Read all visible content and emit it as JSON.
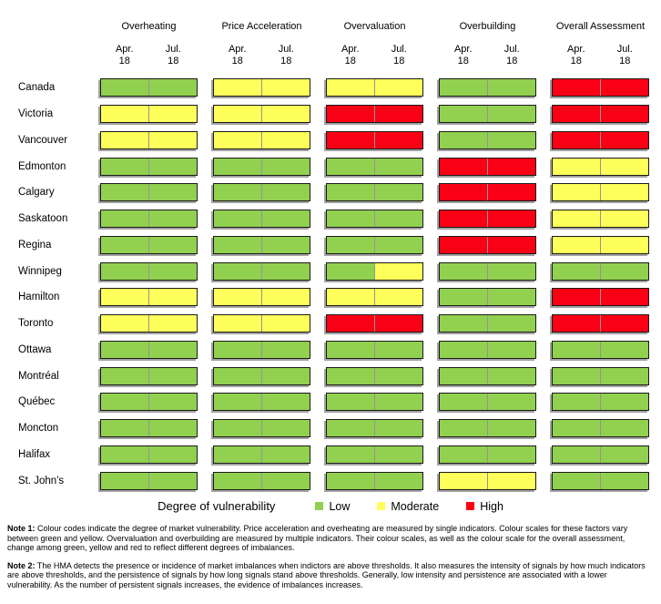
{
  "chart_data": {
    "type": "heatmap",
    "columns": [
      "Overheating",
      "Price Acceleration",
      "Overvaluation",
      "Overbuilding",
      "Overall Assessment"
    ],
    "periods": [
      "Apr. 18",
      "Jul. 18"
    ],
    "colors": {
      "low": "#92D050",
      "moderate": "#FFFF5B",
      "high": "#FA0014"
    },
    "legend": {
      "title": "Degree of vulnerability",
      "items": [
        {
          "label": "Low",
          "level": "low"
        },
        {
          "label": "Moderate",
          "level": "moderate"
        },
        {
          "label": "High",
          "level": "high"
        }
      ]
    },
    "rows": [
      {
        "city": "Canada",
        "values": [
          [
            "low",
            "low"
          ],
          [
            "moderate",
            "moderate"
          ],
          [
            "moderate",
            "moderate"
          ],
          [
            "low",
            "low"
          ],
          [
            "high",
            "high"
          ]
        ]
      },
      {
        "city": "Victoria",
        "values": [
          [
            "moderate",
            "moderate"
          ],
          [
            "moderate",
            "moderate"
          ],
          [
            "high",
            "high"
          ],
          [
            "low",
            "low"
          ],
          [
            "high",
            "high"
          ]
        ]
      },
      {
        "city": "Vancouver",
        "values": [
          [
            "moderate",
            "moderate"
          ],
          [
            "moderate",
            "moderate"
          ],
          [
            "high",
            "high"
          ],
          [
            "low",
            "low"
          ],
          [
            "high",
            "high"
          ]
        ]
      },
      {
        "city": "Edmonton",
        "values": [
          [
            "low",
            "low"
          ],
          [
            "low",
            "low"
          ],
          [
            "low",
            "low"
          ],
          [
            "high",
            "high"
          ],
          [
            "moderate",
            "moderate"
          ]
        ]
      },
      {
        "city": "Calgary",
        "values": [
          [
            "low",
            "low"
          ],
          [
            "low",
            "low"
          ],
          [
            "low",
            "low"
          ],
          [
            "high",
            "high"
          ],
          [
            "moderate",
            "moderate"
          ]
        ]
      },
      {
        "city": "Saskatoon",
        "values": [
          [
            "low",
            "low"
          ],
          [
            "low",
            "low"
          ],
          [
            "low",
            "low"
          ],
          [
            "high",
            "high"
          ],
          [
            "moderate",
            "moderate"
          ]
        ]
      },
      {
        "city": "Regina",
        "values": [
          [
            "low",
            "low"
          ],
          [
            "low",
            "low"
          ],
          [
            "low",
            "low"
          ],
          [
            "high",
            "high"
          ],
          [
            "moderate",
            "moderate"
          ]
        ]
      },
      {
        "city": "Winnipeg",
        "values": [
          [
            "low",
            "low"
          ],
          [
            "low",
            "low"
          ],
          [
            "low",
            "moderate"
          ],
          [
            "low",
            "low"
          ],
          [
            "low",
            "low"
          ]
        ]
      },
      {
        "city": "Hamilton",
        "values": [
          [
            "moderate",
            "moderate"
          ],
          [
            "moderate",
            "moderate"
          ],
          [
            "moderate",
            "moderate"
          ],
          [
            "low",
            "low"
          ],
          [
            "high",
            "high"
          ]
        ]
      },
      {
        "city": "Toronto",
        "values": [
          [
            "moderate",
            "moderate"
          ],
          [
            "moderate",
            "moderate"
          ],
          [
            "high",
            "high"
          ],
          [
            "low",
            "low"
          ],
          [
            "high",
            "high"
          ]
        ]
      },
      {
        "city": "Ottawa",
        "values": [
          [
            "low",
            "low"
          ],
          [
            "low",
            "low"
          ],
          [
            "low",
            "low"
          ],
          [
            "low",
            "low"
          ],
          [
            "low",
            "low"
          ]
        ]
      },
      {
        "city": "Montréal",
        "values": [
          [
            "low",
            "low"
          ],
          [
            "low",
            "low"
          ],
          [
            "low",
            "low"
          ],
          [
            "low",
            "low"
          ],
          [
            "low",
            "low"
          ]
        ]
      },
      {
        "city": "Québec",
        "values": [
          [
            "low",
            "low"
          ],
          [
            "low",
            "low"
          ],
          [
            "low",
            "low"
          ],
          [
            "low",
            "low"
          ],
          [
            "low",
            "low"
          ]
        ]
      },
      {
        "city": "Moncton",
        "values": [
          [
            "low",
            "low"
          ],
          [
            "low",
            "low"
          ],
          [
            "low",
            "low"
          ],
          [
            "low",
            "low"
          ],
          [
            "low",
            "low"
          ]
        ]
      },
      {
        "city": "Halifax",
        "values": [
          [
            "low",
            "low"
          ],
          [
            "low",
            "low"
          ],
          [
            "low",
            "low"
          ],
          [
            "low",
            "low"
          ],
          [
            "low",
            "low"
          ]
        ]
      },
      {
        "city": "St. John's",
        "values": [
          [
            "low",
            "low"
          ],
          [
            "low",
            "low"
          ],
          [
            "low",
            "low"
          ],
          [
            "moderate",
            "moderate"
          ],
          [
            "low",
            "low"
          ]
        ]
      }
    ]
  },
  "notes": [
    {
      "label": "Note 1:",
      "text": "Colour codes indicate the degree of market vulnerability. Price acceleration and overheating are measured by single indicators. Colour scales for these factors vary between green and yellow. Overvaluation and overbuilding are measured by multiple indicators. Their colour scales, as well as the colour scale for the overall assessment, change among green, yellow and red to reflect different degrees of imbalances."
    },
    {
      "label": "Note 2:",
      "text": "The HMA detects the presence or incidence of market imbalances when indictors are above thresholds. It also measures the intensity of signals by how much indicators are above thresholds, and the persistence of signals by how long signals stand above thresholds. Generally, low intensity and persistence are associated with a lower vulnerability. As the number of persistent signals increases, the evidence of imbalances increases."
    }
  ]
}
